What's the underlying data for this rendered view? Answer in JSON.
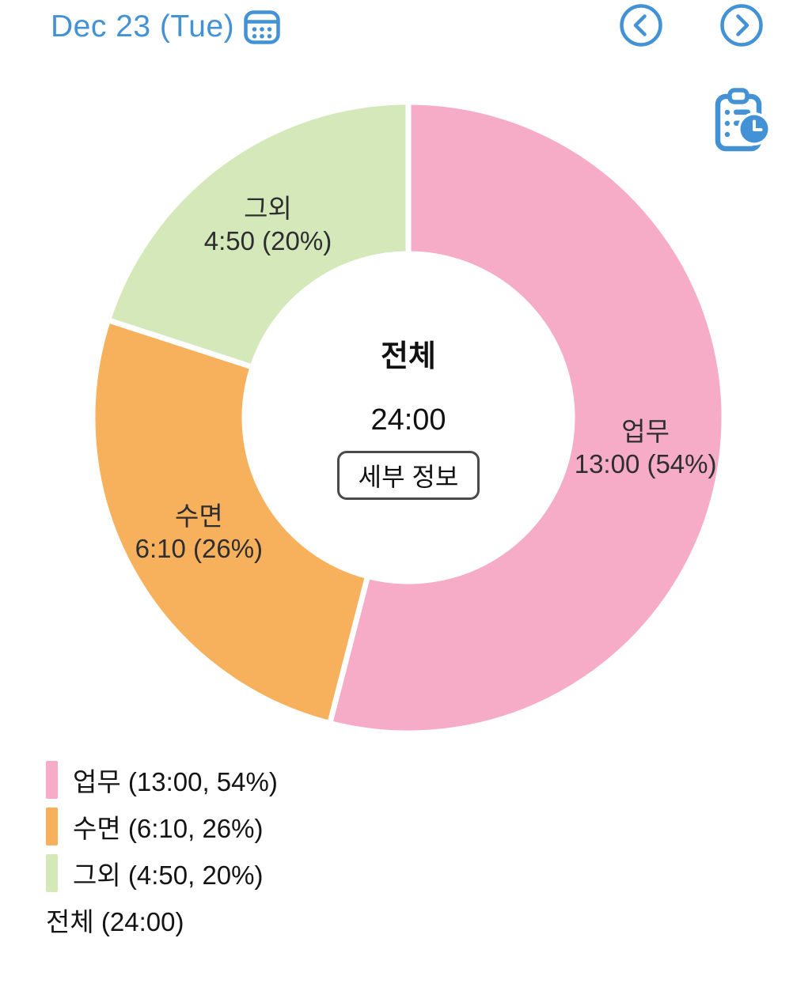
{
  "header": {
    "date_label": "Dec 23 (Tue)"
  },
  "colors": {
    "accent_blue": "#4492D6",
    "work_pink": "#F6ABC7",
    "sleep_orange": "#F7B15D",
    "other_green": "#D4E8BA",
    "slice_label_text": "#2E2E30",
    "details_border": "#4a4a4a"
  },
  "icons": {
    "calendar": "calendar-icon",
    "prev": "chevron-left-circle-icon",
    "next": "chevron-right-circle-icon",
    "report": "clipboard-clock-icon"
  },
  "chart_data": {
    "type": "pie",
    "variant": "donut",
    "start_angle_deg": 0,
    "clockwise": true,
    "slices": [
      {
        "name": "업무",
        "time": "13:00",
        "percent": 54,
        "value_label": "13:00 (54%)",
        "color": "#F6ABC7"
      },
      {
        "name": "수면",
        "time": "6:10",
        "percent": 26,
        "value_label": "6:10 (26%)",
        "color": "#F7B15D"
      },
      {
        "name": "그외",
        "time": "4:50",
        "percent": 20,
        "value_label": "4:50 (20%)",
        "color": "#D4E8BA"
      }
    ],
    "total": {
      "name": "전체",
      "time": "24:00"
    }
  },
  "center": {
    "title": "전체",
    "total": "24:00",
    "details_button_label": "세부 정보"
  },
  "legend": {
    "items": [
      {
        "label": "업무 (13:00, 54%)",
        "color": "#F6ABC7"
      },
      {
        "label": "수면 (6:10, 26%)",
        "color": "#F7B15D"
      },
      {
        "label": "그외 (4:50, 20%)",
        "color": "#D4E8BA"
      }
    ],
    "total_label": "전체 (24:00)"
  }
}
